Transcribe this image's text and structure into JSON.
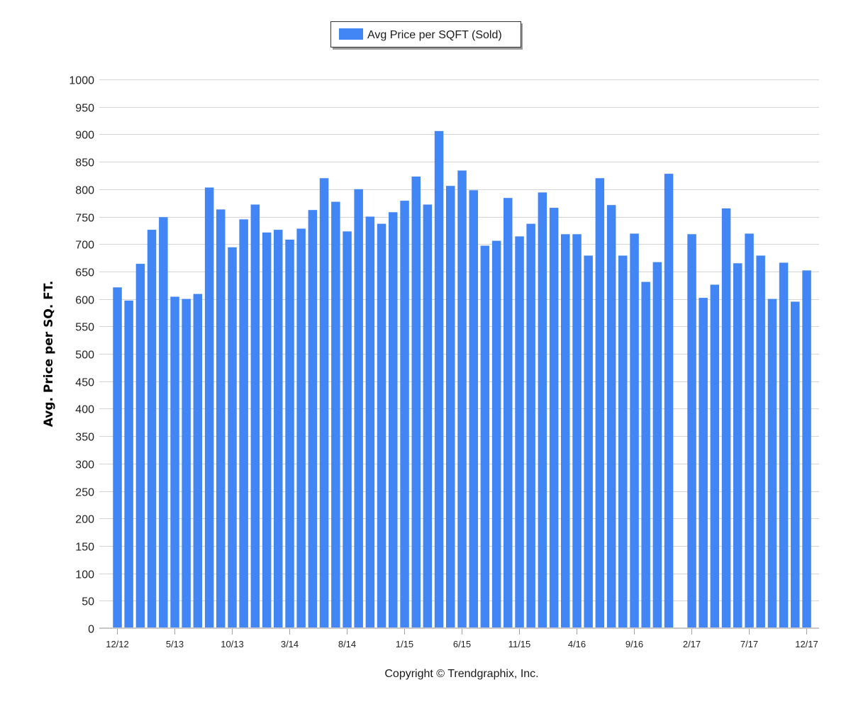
{
  "chart_data": {
    "type": "bar",
    "legend": {
      "label": "Avg Price per SQFT (Sold)",
      "placement": "top-center"
    },
    "ylabel": "Avg. Price per SQ. FT.",
    "xlabel": "",
    "ylim": [
      0,
      1000
    ],
    "yticks": [
      0,
      50,
      100,
      150,
      200,
      250,
      300,
      350,
      400,
      450,
      500,
      550,
      600,
      650,
      700,
      750,
      800,
      850,
      900,
      950,
      1000
    ],
    "grid": true,
    "color": "#4285f4",
    "x_tick_labels": [
      "12/12",
      "5/13",
      "10/13",
      "3/14",
      "8/14",
      "1/15",
      "6/15",
      "11/15",
      "4/16",
      "9/16",
      "2/17",
      "7/17",
      "12/17"
    ],
    "categories": [
      "12/12",
      "1/13",
      "2/13",
      "3/13",
      "4/13",
      "5/13",
      "6/13",
      "7/13",
      "8/13",
      "9/13",
      "10/13",
      "11/13",
      "12/13",
      "1/14",
      "2/14",
      "3/14",
      "4/14",
      "5/14",
      "6/14",
      "7/14",
      "8/14",
      "9/14",
      "10/14",
      "11/14",
      "12/14",
      "1/15",
      "2/15",
      "3/15",
      "4/15",
      "5/15",
      "6/15",
      "7/15",
      "8/15",
      "9/15",
      "10/15",
      "11/15",
      "12/15",
      "1/16",
      "2/16",
      "3/16",
      "4/16",
      "5/16",
      "6/16",
      "7/16",
      "8/16",
      "9/16",
      "10/16",
      "11/16",
      "12/16",
      "1/17",
      "2/17",
      "3/17",
      "4/17",
      "5/17",
      "6/17",
      "7/17",
      "8/17",
      "9/17",
      "10/17",
      "11/17",
      "12/17"
    ],
    "values": [
      621,
      597,
      664,
      726,
      749,
      604,
      600,
      609,
      803,
      763,
      694,
      745,
      772,
      721,
      726,
      708,
      728,
      762,
      820,
      777,
      723,
      800,
      750,
      737,
      758,
      779,
      823,
      772,
      906,
      806,
      834,
      798,
      697,
      706,
      784,
      714,
      737,
      794,
      766,
      718,
      718,
      679,
      820,
      771,
      679,
      719,
      631,
      667,
      828,
      0,
      718,
      602,
      626,
      765,
      665,
      719,
      679,
      600,
      666,
      595,
      652
    ]
  },
  "footer": {
    "copyright": "Copyright © Trendgraphix, Inc."
  }
}
